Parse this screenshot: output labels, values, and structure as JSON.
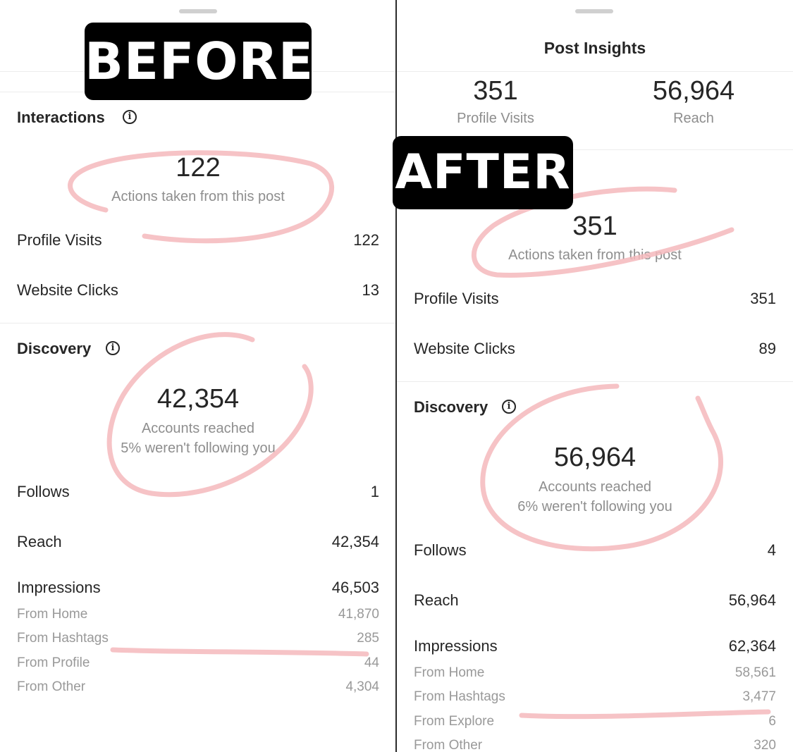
{
  "colors": {
    "annotation": "#f4b8bc",
    "badge_bg": "#000000",
    "muted_text": "#8e8e8e"
  },
  "before": {
    "badge": "BEFORE",
    "interactions": {
      "title": "Interactions",
      "info_icon": "info-icon",
      "count": "122",
      "count_label": "Actions taken from this post",
      "rows": [
        {
          "label": "Profile Visits",
          "value": "122"
        },
        {
          "label": "Website Clicks",
          "value": "13"
        }
      ]
    },
    "discovery": {
      "title": "Discovery",
      "count": "42,354",
      "count_label": "Accounts reached",
      "note": "5% weren't following you",
      "rows": [
        {
          "label": "Follows",
          "value": "1"
        },
        {
          "label": "Reach",
          "value": "42,354"
        },
        {
          "label": "Impressions",
          "value": "46,503"
        }
      ],
      "sub_rows": [
        {
          "label": "From Home",
          "value": "41,870"
        },
        {
          "label": "From Hashtags",
          "value": "285"
        },
        {
          "label": "From Profile",
          "value": "44"
        },
        {
          "label": "From Other",
          "value": "4,304"
        }
      ]
    }
  },
  "after": {
    "badge": "AFTER",
    "header": {
      "title": "Post Insights",
      "stats": [
        {
          "value": "351",
          "label": "Profile Visits"
        },
        {
          "value": "56,964",
          "label": "Reach"
        }
      ]
    },
    "interactions": {
      "count": "351",
      "count_label": "Actions taken from this post",
      "rows": [
        {
          "label": "Profile Visits",
          "value": "351"
        },
        {
          "label": "Website Clicks",
          "value": "89"
        }
      ]
    },
    "discovery": {
      "title": "Discovery",
      "info_icon": "info-icon",
      "count": "56,964",
      "count_label": "Accounts reached",
      "note": "6% weren't following you",
      "rows": [
        {
          "label": "Follows",
          "value": "4"
        },
        {
          "label": "Reach",
          "value": "56,964"
        },
        {
          "label": "Impressions",
          "value": "62,364"
        }
      ],
      "sub_rows": [
        {
          "label": "From Home",
          "value": "58,561"
        },
        {
          "label": "From Hashtags",
          "value": "3,477"
        },
        {
          "label": "From Explore",
          "value": "6"
        },
        {
          "label": "From Other",
          "value": "320"
        }
      ]
    }
  }
}
